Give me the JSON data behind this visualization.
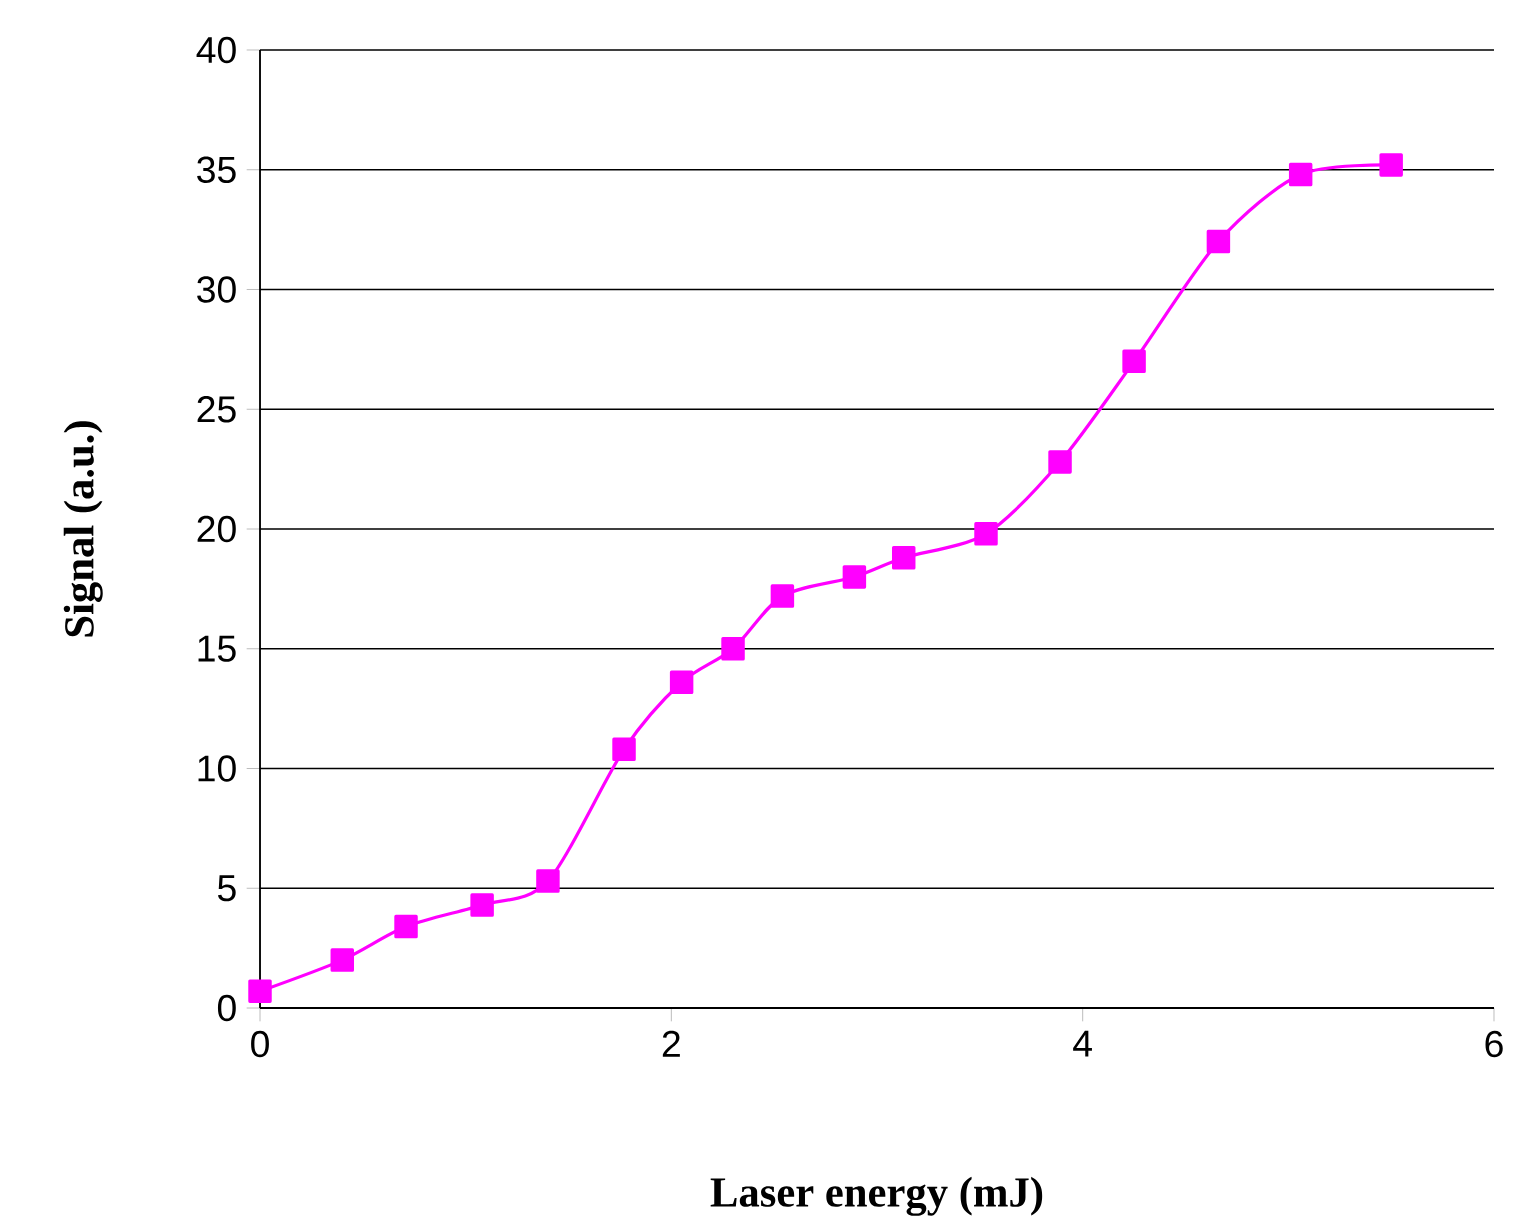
{
  "chart_data": {
    "type": "line",
    "xlabel": "Laser energy (mJ)",
    "ylabel": "Signal  (a.u.)",
    "x": [
      0,
      0.4,
      0.71,
      1.08,
      1.4,
      1.77,
      2.05,
      2.3,
      2.54,
      2.89,
      3.13,
      3.53,
      3.89,
      4.25,
      4.66,
      5.06,
      5.5
    ],
    "series": [
      {
        "color": "#ff00ff",
        "values": [
          0.7,
          2.0,
          3.4,
          4.3,
          5.3,
          10.8,
          13.6,
          15.0,
          17.2,
          18.0,
          18.8,
          19.8,
          22.8,
          27.0,
          32.0,
          34.8,
          35.2
        ]
      }
    ],
    "xlim": [
      0,
      6
    ],
    "xticks": [
      0,
      2,
      4,
      6
    ],
    "ylim": [
      0,
      40
    ],
    "yticks": [
      0,
      5,
      10,
      15,
      20,
      25,
      30,
      35,
      40
    ],
    "grid": "y",
    "marker": "square",
    "line_style": "solid"
  }
}
